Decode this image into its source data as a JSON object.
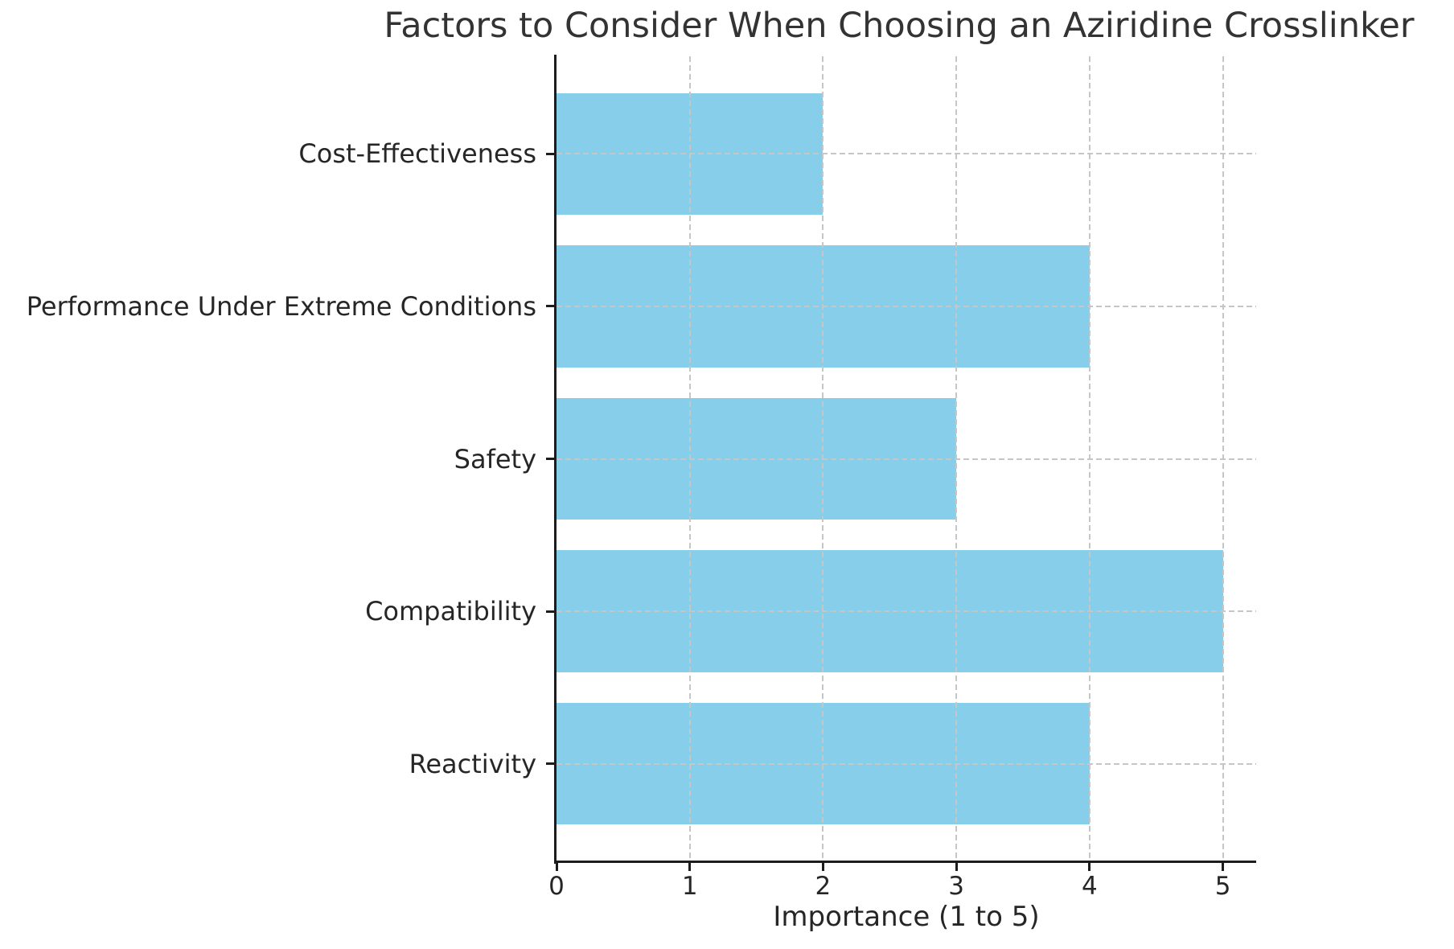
{
  "chart_data": {
    "type": "bar",
    "orientation": "horizontal",
    "title": "Factors to Consider When Choosing an Aziridine Crosslinker",
    "xlabel": "Importance (1 to 5)",
    "ylabel": "",
    "categories": [
      "Cost-Effectiveness",
      "Performance Under Extreme Conditions",
      "Safety",
      "Compatibility",
      "Reactivity"
    ],
    "values": [
      2,
      4,
      3,
      5,
      4
    ],
    "xticks": [
      0,
      1,
      2,
      3,
      4,
      5
    ],
    "xlim": [
      0,
      5.25
    ],
    "grid": "dashed, both axes, drawn above bars",
    "legend_position": "none",
    "colors": {
      "bar": "#87ceeb",
      "grid": "#c6c6c6",
      "axis": "#1c1c1c",
      "text": "#262626",
      "background": "#ffffff"
    }
  }
}
